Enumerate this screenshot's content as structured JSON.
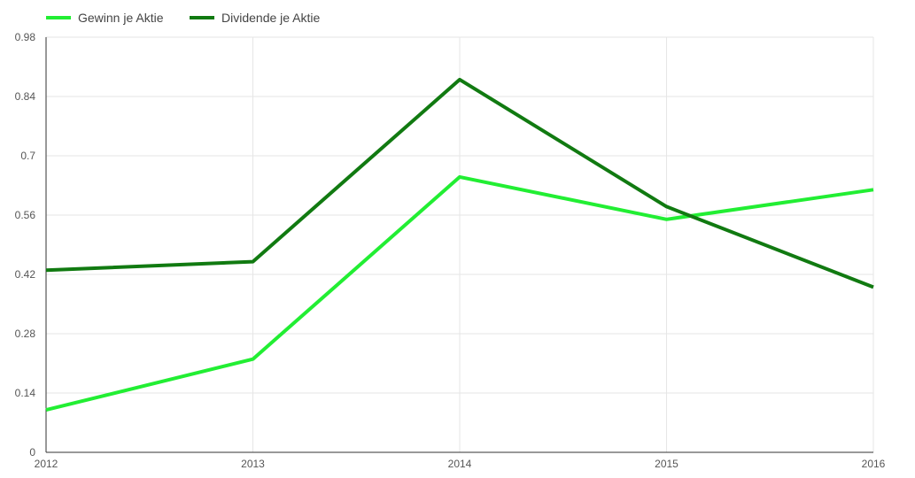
{
  "chart_data": {
    "type": "line",
    "categories": [
      "2012",
      "2013",
      "2014",
      "2015",
      "2016"
    ],
    "yticks": [
      "0",
      "0.14",
      "0.28",
      "0.42",
      "0.56",
      "0.7",
      "0.84",
      "0.98"
    ],
    "ylim": [
      0,
      0.98
    ],
    "grid": true,
    "legend_position": "top-left",
    "series": [
      {
        "name": "Gewinn je Aktie",
        "color": "#22ee33",
        "values": [
          0.1,
          0.22,
          0.65,
          0.55,
          0.62
        ]
      },
      {
        "name": "Dividende je Aktie",
        "color": "#117a11",
        "values": [
          0.43,
          0.45,
          0.88,
          0.58,
          0.39
        ]
      }
    ]
  }
}
